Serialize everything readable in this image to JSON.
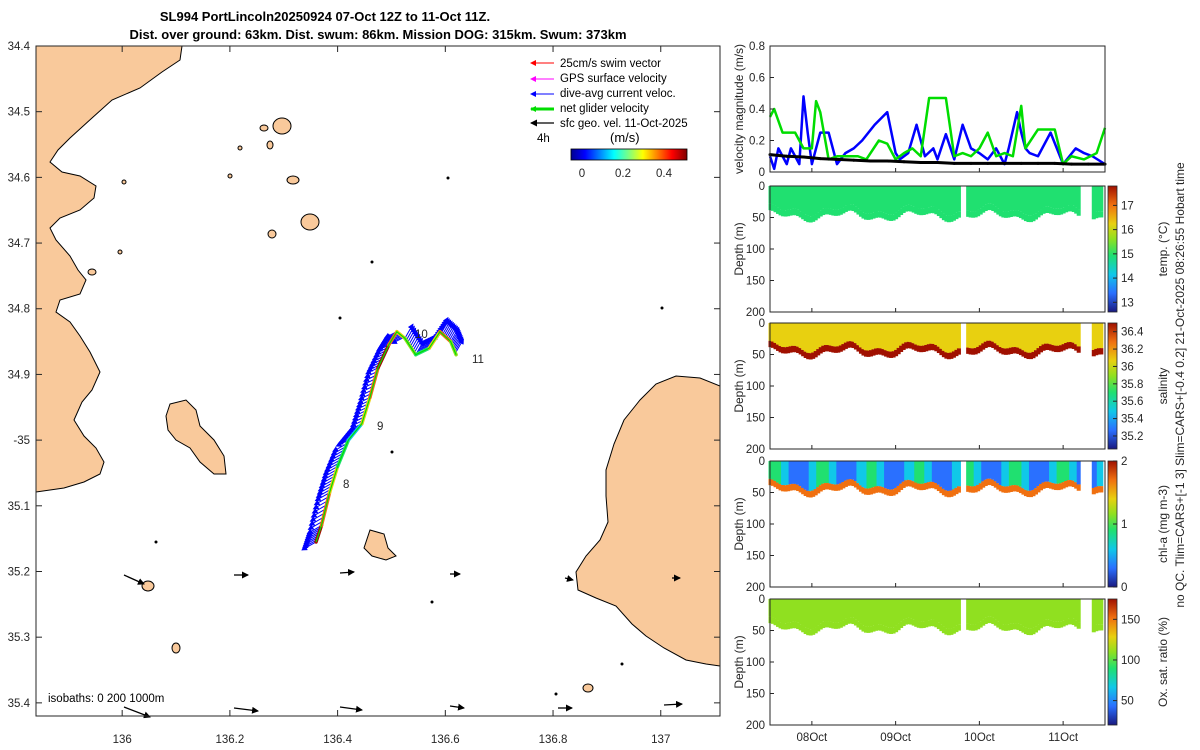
{
  "map": {
    "title_line1": "SL994 PortLincoln20250924 07-Oct 12Z to 11-Oct 11Z.",
    "title_line2": "Dist. over ground: 63km. Dist. swum: 86km. Mission DOG: 315km. Swum: 373km",
    "xlim": [
      135.84,
      137.11
    ],
    "ylim": [
      -35.42,
      -34.4
    ],
    "xticks": [
      136,
      136.2,
      136.4,
      136.6,
      136.8,
      137
    ],
    "xtick_labels": [
      "136",
      "136.2",
      "136.4",
      "136.6",
      "136.8",
      "137"
    ],
    "yticks": [
      -34.4,
      -34.5,
      -34.6,
      -34.7,
      -34.8,
      -34.9,
      -35,
      -35.1,
      -35.2,
      -35.3,
      -35.4
    ],
    "ytick_labels": [
      "34.4",
      "34.5",
      "34.6",
      "34.7",
      "34.8",
      "34.9",
      "-35",
      "35.1",
      "35.2",
      "35.3",
      "35.4"
    ],
    "land_color": "#f9c99b",
    "sea_color": "#ffffff",
    "legend": [
      {
        "label": "25cm/s swim vector",
        "color": "#ff0000"
      },
      {
        "label": "GPS surface velocity",
        "color": "#ff00ff"
      },
      {
        "label": "dive-avg current veloc.",
        "color": "#0000ff"
      },
      {
        "label": "net glider velocity",
        "color": "#00dd00"
      },
      {
        "label": "sfc geo. vel. 11-Oct-2025",
        "color": "#000000"
      }
    ],
    "legend_scale_label": "4h",
    "colorbar_label": "(m/s)",
    "colorbar_ticks": [
      "0",
      "0.2",
      "0.4"
    ],
    "day_labels": [
      "8",
      "9",
      "10",
      "11"
    ],
    "isobath_label": "isobaths: 0   200  1000m",
    "track": [
      [
        136.36,
        -35.155
      ],
      [
        136.37,
        -35.13
      ],
      [
        136.385,
        -35.08
      ],
      [
        136.4,
        -35.04
      ],
      [
        136.42,
        -35.0
      ],
      [
        136.445,
        -34.975
      ],
      [
        136.46,
        -34.935
      ],
      [
        136.475,
        -34.89
      ],
      [
        136.495,
        -34.855
      ],
      [
        136.51,
        -34.835
      ],
      [
        136.525,
        -34.845
      ],
      [
        136.545,
        -34.87
      ],
      [
        136.57,
        -34.86
      ],
      [
        136.59,
        -34.835
      ],
      [
        136.61,
        -34.85
      ],
      [
        136.62,
        -34.87
      ]
    ]
  },
  "chart_data": [
    {
      "type": "line",
      "title": "",
      "ylabel": "velocity magnitude (m/s)",
      "ylim": [
        0,
        0.8
      ],
      "yticks": [
        "0",
        "0.2",
        "0.4",
        "0.6",
        "0.8"
      ],
      "xlim_days": [
        7.5,
        11.5
      ],
      "series": [
        {
          "name": "dive-avg current veloc.",
          "color": "#0000ff",
          "x": [
            7.5,
            7.55,
            7.6,
            7.7,
            7.75,
            7.85,
            7.9,
            7.95,
            8.0,
            8.1,
            8.2,
            8.3,
            8.4,
            8.5,
            8.6,
            8.75,
            8.9,
            9.0,
            9.05,
            9.15,
            9.25,
            9.35,
            9.45,
            9.5,
            9.6,
            9.7,
            9.8,
            9.9,
            10.0,
            10.1,
            10.2,
            10.3,
            10.35,
            10.45,
            10.5,
            10.55,
            10.6,
            10.7,
            10.85,
            11.0,
            11.15,
            11.25,
            11.35,
            11.5
          ],
          "y": [
            0.1,
            0.02,
            0.15,
            0.05,
            0.15,
            0.05,
            0.48,
            0.25,
            0.05,
            0.25,
            0.25,
            0.05,
            0.12,
            0.15,
            0.2,
            0.3,
            0.38,
            0.12,
            0.08,
            0.12,
            0.3,
            0.1,
            0.15,
            0.08,
            0.24,
            0.08,
            0.3,
            0.15,
            0.12,
            0.08,
            0.15,
            0.05,
            0.15,
            0.38,
            0.25,
            0.15,
            0.12,
            0.1,
            0.25,
            0.05,
            0.15,
            0.12,
            0.1,
            0.05
          ]
        },
        {
          "name": "net glider velocity",
          "color": "#00dd00",
          "x": [
            7.5,
            7.55,
            7.65,
            7.8,
            7.9,
            8.0,
            8.05,
            8.1,
            8.2,
            8.3,
            8.4,
            8.55,
            8.65,
            8.8,
            8.9,
            9.0,
            9.1,
            9.2,
            9.3,
            9.4,
            9.5,
            9.6,
            9.7,
            9.8,
            9.9,
            10.0,
            10.1,
            10.2,
            10.3,
            10.4,
            10.5,
            10.55,
            10.7,
            10.9,
            11.0,
            11.1,
            11.25,
            11.4,
            11.5
          ],
          "y": [
            0.35,
            0.4,
            0.25,
            0.25,
            0.15,
            0.15,
            0.45,
            0.38,
            0.08,
            0.1,
            0.1,
            0.1,
            0.08,
            0.2,
            0.18,
            0.08,
            0.12,
            0.15,
            0.1,
            0.47,
            0.47,
            0.47,
            0.1,
            0.12,
            0.1,
            0.15,
            0.25,
            0.1,
            0.12,
            0.1,
            0.42,
            0.15,
            0.27,
            0.27,
            0.05,
            0.1,
            0.08,
            0.12,
            0.28
          ]
        },
        {
          "name": "sfc geo. vel.",
          "color": "#000000",
          "x": [
            7.5,
            7.7,
            7.9,
            8.1,
            8.3,
            8.5,
            8.7,
            8.9,
            9.1,
            9.3,
            9.5,
            9.7,
            9.9,
            10.1,
            10.3,
            10.5,
            10.7,
            10.9,
            11.1,
            11.3,
            11.5
          ],
          "y": [
            0.11,
            0.1,
            0.095,
            0.085,
            0.08,
            0.075,
            0.07,
            0.07,
            0.065,
            0.06,
            0.06,
            0.055,
            0.055,
            0.055,
            0.055,
            0.055,
            0.055,
            0.055,
            0.05,
            0.05,
            0.05
          ]
        }
      ]
    },
    {
      "type": "heatmap",
      "ylabel": "Depth (m)",
      "ylim": [
        200,
        0
      ],
      "yticks": [
        "0",
        "50",
        "100",
        "150",
        "200"
      ],
      "colorbar_label": "temp. (°C)",
      "colorbar_ticks": [
        "13",
        "14",
        "15",
        "16",
        "17"
      ],
      "colorbar_range": [
        12.6,
        17.8
      ],
      "mixed_layer_value": 15.2,
      "deep_value": 14.8
    },
    {
      "type": "heatmap",
      "ylabel": "Depth (m)",
      "ylim": [
        200,
        0
      ],
      "yticks": [
        "0",
        "50",
        "100",
        "150",
        "200"
      ],
      "colorbar_label": "salinity",
      "colorbar_ticks": [
        "35.2",
        "35.4",
        "35.6",
        "35.8",
        "36",
        "36.2",
        "36.4"
      ],
      "colorbar_range": [
        35.05,
        36.5
      ],
      "mixed_layer_value": 36.1,
      "deep_value": 36.5
    },
    {
      "type": "heatmap",
      "ylabel": "Depth (m)",
      "ylim": [
        200,
        0
      ],
      "yticks": [
        "0",
        "50",
        "100",
        "150",
        "200"
      ],
      "colorbar_label": "chl-a (mg m-3)",
      "colorbar_ticks": [
        "0",
        "1",
        "2"
      ],
      "colorbar_range": [
        0,
        2
      ],
      "mixed_layer_value": 0.6,
      "deep_value": 1.6
    },
    {
      "type": "heatmap",
      "ylabel": "Depth (m)",
      "ylim": [
        200,
        0
      ],
      "yticks": [
        "0",
        "50",
        "100",
        "150",
        "200"
      ],
      "xtick_labels": [
        "08Oct",
        "09Oct",
        "10Oct",
        "11Oct"
      ],
      "colorbar_label": "Ox. sat. ratio (%)",
      "colorbar_ticks": [
        "50",
        "100",
        "150"
      ],
      "colorbar_range": [
        20,
        175
      ],
      "mixed_layer_value": 100,
      "deep_value": 100
    }
  ],
  "side_label": "no QC. Tlim=CARS+[-1 3] Slim=CARS+[-0.4 0.2] 21-Oct-2025 08:26:55 Hobart time"
}
